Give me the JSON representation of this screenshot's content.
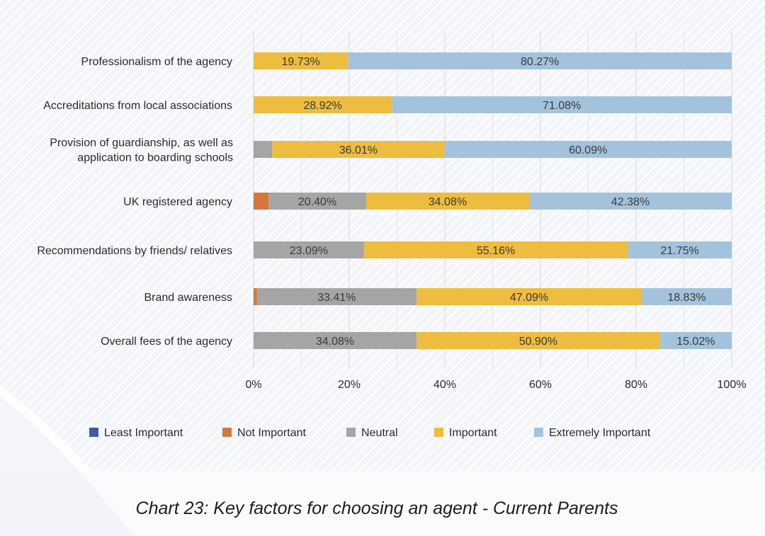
{
  "caption": "Chart 23: Key factors for choosing an agent - Current Parents",
  "chart_data": {
    "type": "bar",
    "orientation": "horizontal",
    "stacked": true,
    "categories": [
      [
        "Professionalism of the agency"
      ],
      [
        "Accreditations from local associations"
      ],
      [
        "Provision of guardianship, as well as",
        "application to boarding schools"
      ],
      [
        "UK registered agency"
      ],
      [
        "Recommendations by friends/ relatives"
      ],
      [
        "Brand awareness"
      ],
      [
        "Overall fees of the agency"
      ]
    ],
    "series": [
      {
        "name": "Least Important",
        "color": "#3a5ea6",
        "values": [
          0,
          0,
          0,
          0,
          0,
          0,
          0
        ]
      },
      {
        "name": "Not Important",
        "color": "#d4773c",
        "values": [
          0,
          0,
          0,
          3.14,
          0,
          0.67,
          0
        ]
      },
      {
        "name": "Neutral",
        "color": "#a5a5a5",
        "values": [
          0,
          0,
          3.9,
          20.4,
          23.09,
          33.41,
          34.08
        ]
      },
      {
        "name": "Important",
        "color": "#eebc3f",
        "values": [
          19.73,
          28.92,
          36.01,
          34.08,
          55.16,
          47.09,
          50.9
        ]
      },
      {
        "name": "Extremely Important",
        "color": "#a3c3dc",
        "values": [
          80.27,
          71.08,
          60.09,
          42.38,
          21.75,
          18.83,
          15.02
        ]
      }
    ],
    "data_labels": [
      [
        "",
        "",
        "",
        "19.73%",
        "80.27%"
      ],
      [
        "",
        "",
        "",
        "28.92%",
        "71.08%"
      ],
      [
        "",
        "",
        "",
        "36.01%",
        "60.09%"
      ],
      [
        "",
        "",
        "20.40%",
        "34.08%",
        "42.38%"
      ],
      [
        "",
        "",
        "23.09%",
        "55.16%",
        "21.75%"
      ],
      [
        "",
        "",
        "33.41%",
        "47.09%",
        "18.83%"
      ],
      [
        "",
        "",
        "34.08%",
        "50.90%",
        "15.02%"
      ]
    ],
    "xlim": [
      0,
      100
    ],
    "xticks": [
      "0%",
      "20%",
      "40%",
      "60%",
      "80%",
      "100%"
    ],
    "grid": true,
    "legend_position": "bottom"
  }
}
